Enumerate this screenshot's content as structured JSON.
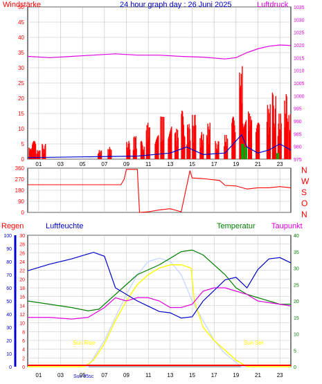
{
  "header": {
    "left_label": "Windstärke",
    "title": "24 hour graph day : 26 Juni 2025",
    "right_label": "Luftdruck"
  },
  "middle": {
    "compass": [
      "N",
      "W",
      "S",
      "O",
      "N"
    ]
  },
  "bottom": {
    "labels": {
      "regen": "Regen",
      "luftfeuchte": "Luftfeuchte",
      "temperatur": "Temperatur",
      "taupunkt": "Taupunkt"
    },
    "annotations": {
      "sun_rise": "Sun Rise",
      "sun_set": "Sun Set",
      "sun_osc": "Sun 05sc"
    }
  },
  "colors": {
    "wind": "#ff0000",
    "gust_avg": "#0000cc",
    "rain": "#00aa00",
    "pressure": "#e000e0",
    "humidity": "#0000cc",
    "temperature": "#008000",
    "dewpoint": "#e000e0",
    "solar": "#ffff00",
    "uv": "#c8d8ff",
    "grid": "#c0c0c0"
  },
  "chart_data": [
    {
      "type": "line",
      "name_left": "Windstärke",
      "name_right": "Luftdruck",
      "ylim_left": [
        0,
        50
      ],
      "left_ticks": [
        0,
        5,
        10,
        15,
        20,
        25,
        30,
        35,
        40,
        45,
        50
      ],
      "ylim_right": [
        975,
        1035
      ],
      "right_ticks": [
        975,
        980,
        985,
        990,
        995,
        1000,
        1005,
        1010,
        1015,
        1020,
        1025,
        1030,
        1035
      ],
      "x_ticks": [
        "01",
        "03",
        "05",
        "07",
        "09",
        "11",
        "13",
        "15",
        "17",
        "19",
        "21",
        "23"
      ],
      "xlim": [
        0,
        24
      ],
      "pressure": [
        [
          0,
          1015.5
        ],
        [
          2,
          1015
        ],
        [
          4,
          1015.5
        ],
        [
          6,
          1016
        ],
        [
          8,
          1016.5
        ],
        [
          10,
          1016
        ],
        [
          12,
          1016
        ],
        [
          14,
          1015.5
        ],
        [
          16,
          1015.2
        ],
        [
          18,
          1014.5
        ],
        [
          19,
          1015
        ],
        [
          20,
          1017
        ],
        [
          21,
          1018.5
        ],
        [
          22,
          1019.5
        ],
        [
          23,
          1020
        ],
        [
          24,
          1019.8
        ]
      ],
      "wind_gust_peaks": [
        [
          0.3,
          4
        ],
        [
          0.6,
          6
        ],
        [
          1.0,
          3
        ],
        [
          1.5,
          5
        ],
        [
          6.6,
          3
        ],
        [
          7.5,
          4
        ],
        [
          9.2,
          6
        ],
        [
          9.8,
          8
        ],
        [
          10.5,
          6
        ],
        [
          11,
          12
        ],
        [
          11.8,
          8
        ],
        [
          12.3,
          14
        ],
        [
          13,
          12
        ],
        [
          13.6,
          10
        ],
        [
          14.2,
          16
        ],
        [
          14.7,
          12
        ],
        [
          15.2,
          15
        ],
        [
          15.9,
          9
        ],
        [
          16.5,
          12
        ],
        [
          17.3,
          6
        ],
        [
          18.1,
          8
        ],
        [
          18.8,
          14
        ],
        [
          19.5,
          31
        ],
        [
          19.8,
          22
        ],
        [
          20.3,
          16
        ],
        [
          21,
          12
        ],
        [
          22,
          18
        ],
        [
          22.5,
          22
        ],
        [
          23,
          15
        ],
        [
          23.6,
          22
        ],
        [
          24,
          16
        ]
      ],
      "wind_avg": [
        [
          0,
          0.5
        ],
        [
          10,
          1
        ],
        [
          13,
          2
        ],
        [
          14.5,
          4
        ],
        [
          16,
          1.5
        ],
        [
          18,
          2
        ],
        [
          19.5,
          8
        ],
        [
          20,
          4
        ],
        [
          21,
          2
        ],
        [
          22,
          3
        ],
        [
          23,
          5
        ],
        [
          24,
          3
        ]
      ],
      "rain": [
        [
          19.6,
          5
        ],
        [
          19.9,
          4
        ],
        [
          22.8,
          2
        ]
      ]
    },
    {
      "type": "line",
      "name": "Wind direction",
      "ylim": [
        0,
        360
      ],
      "ticks": [
        0,
        90,
        180,
        270,
        360
      ],
      "direction": [
        [
          0,
          225
        ],
        [
          8.5,
          225
        ],
        [
          8.8,
          270
        ],
        [
          9,
          350
        ],
        [
          10,
          350
        ],
        [
          10.2,
          0
        ],
        [
          11,
          5
        ],
        [
          12,
          20
        ],
        [
          13,
          30
        ],
        [
          14,
          5
        ],
        [
          14.8,
          340
        ],
        [
          15,
          280
        ],
        [
          16,
          275
        ],
        [
          17.5,
          260
        ],
        [
          18,
          220
        ],
        [
          19,
          215
        ],
        [
          20,
          190
        ],
        [
          21,
          200
        ],
        [
          22,
          200
        ],
        [
          23,
          210
        ],
        [
          24,
          200
        ]
      ]
    },
    {
      "type": "line",
      "ylim_rain": [
        0,
        100
      ],
      "rain_ticks": [
        0,
        10,
        20,
        30,
        40,
        50,
        60,
        70,
        80,
        90,
        100
      ],
      "ylim_humidity": [
        0,
        30
      ],
      "humidity_ticks": [
        0,
        2,
        4,
        6,
        8,
        10,
        12,
        14,
        16,
        18,
        20,
        22,
        24,
        26,
        28,
        30
      ],
      "ylim_temp": [
        0,
        40
      ],
      "temp_ticks": [
        0,
        5,
        10,
        15,
        20,
        25,
        30,
        35,
        40
      ],
      "humidity": [
        [
          0,
          73
        ],
        [
          2,
          78
        ],
        [
          4,
          82
        ],
        [
          6,
          87
        ],
        [
          7,
          84
        ],
        [
          8,
          60
        ],
        [
          9,
          55
        ],
        [
          10,
          50
        ],
        [
          11,
          46
        ],
        [
          12,
          42
        ],
        [
          13,
          41
        ],
        [
          14,
          37
        ],
        [
          15,
          38
        ],
        [
          16,
          50
        ],
        [
          17,
          58
        ],
        [
          18,
          66
        ],
        [
          19,
          68
        ],
        [
          20,
          60
        ],
        [
          21,
          74
        ],
        [
          22,
          82
        ],
        [
          23,
          83
        ],
        [
          24,
          79
        ]
      ],
      "temperature": [
        [
          0,
          20
        ],
        [
          2,
          19
        ],
        [
          4,
          18
        ],
        [
          5.5,
          17
        ],
        [
          6.5,
          17.5
        ],
        [
          8,
          22
        ],
        [
          9,
          25
        ],
        [
          10,
          28
        ],
        [
          12,
          31
        ],
        [
          14,
          35
        ],
        [
          15,
          35.5
        ],
        [
          16,
          34
        ],
        [
          17,
          31
        ],
        [
          18,
          28
        ],
        [
          19,
          24
        ],
        [
          20,
          22
        ],
        [
          21,
          21
        ],
        [
          22,
          20
        ],
        [
          23,
          19
        ],
        [
          24,
          19
        ]
      ],
      "dewpoint": [
        [
          0,
          15
        ],
        [
          2,
          15
        ],
        [
          4,
          14.5
        ],
        [
          5.5,
          15
        ],
        [
          7,
          18
        ],
        [
          8,
          21
        ],
        [
          9,
          20
        ],
        [
          10,
          21
        ],
        [
          11,
          21
        ],
        [
          12,
          20
        ],
        [
          13,
          18
        ],
        [
          14,
          18
        ],
        [
          15,
          19
        ],
        [
          16,
          23
        ],
        [
          17,
          24
        ],
        [
          18,
          24
        ],
        [
          19,
          23
        ],
        [
          20,
          22
        ],
        [
          21,
          20
        ],
        [
          22,
          19.5
        ],
        [
          23,
          19
        ],
        [
          24,
          18.5
        ]
      ],
      "solar": [
        [
          0,
          0
        ],
        [
          5.2,
          0
        ],
        [
          6,
          2
        ],
        [
          7,
          7
        ],
        [
          8,
          14
        ],
        [
          9,
          20
        ],
        [
          10,
          25
        ],
        [
          11,
          28
        ],
        [
          12,
          30
        ],
        [
          13,
          31
        ],
        [
          14,
          31
        ],
        [
          14.9,
          30
        ],
        [
          15.2,
          20
        ],
        [
          16,
          12
        ],
        [
          17,
          8
        ],
        [
          18,
          5
        ],
        [
          19,
          2
        ],
        [
          20,
          0
        ],
        [
          24,
          0
        ]
      ],
      "uv": [
        [
          0,
          0
        ],
        [
          5.5,
          0
        ],
        [
          7,
          8
        ],
        [
          8,
          15
        ],
        [
          9,
          22
        ],
        [
          10,
          28
        ],
        [
          11,
          32
        ],
        [
          12,
          33
        ],
        [
          13,
          32
        ],
        [
          14,
          28
        ],
        [
          15,
          20
        ],
        [
          16,
          14
        ],
        [
          17,
          8
        ],
        [
          18,
          4
        ],
        [
          19.5,
          0
        ],
        [
          24,
          0
        ]
      ],
      "sun_rise_hour": 5.3,
      "sun_set_hour": 21.2
    }
  ]
}
